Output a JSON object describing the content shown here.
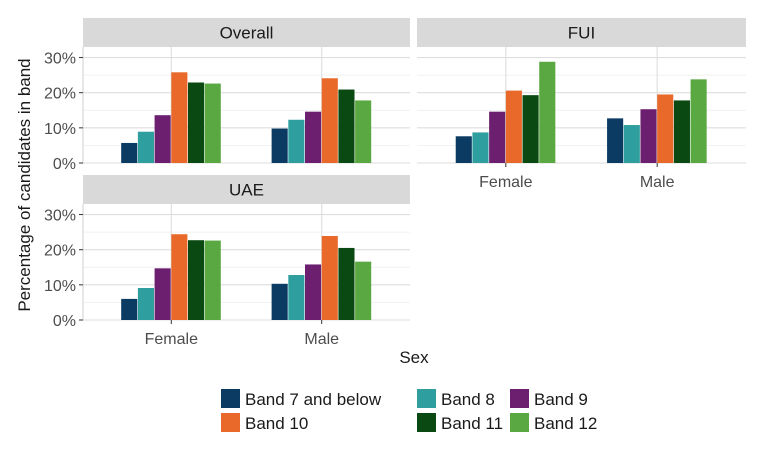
{
  "chart_data": {
    "type": "bar",
    "xlabel": "Sex",
    "ylabel": "Percentage of candidates in band",
    "ylim": [
      0,
      33
    ],
    "y_ticks": [
      "0%",
      "10%",
      "20%",
      "30%"
    ],
    "y_tick_values": [
      0,
      10,
      20,
      30
    ],
    "categories": [
      "Female",
      "Male"
    ],
    "legend": [
      "Band 7 and below",
      "Band 8",
      "Band 9",
      "Band 10",
      "Band 11",
      "Band 12"
    ],
    "legend_position": "bottom",
    "grid": true,
    "colors": [
      "#0b3a63",
      "#2f9e9e",
      "#6b1f6e",
      "#e8692a",
      "#0a4a12",
      "#5aa842"
    ],
    "panels": [
      {
        "title": "Overall",
        "series": [
          {
            "name": "Band 7 and below",
            "values": [
              5.7,
              9.8
            ]
          },
          {
            "name": "Band 8",
            "values": [
              8.9,
              12.3
            ]
          },
          {
            "name": "Band 9",
            "values": [
              13.6,
              14.6
            ]
          },
          {
            "name": "Band 10",
            "values": [
              25.8,
              24.1
            ]
          },
          {
            "name": "Band 11",
            "values": [
              22.9,
              20.9
            ]
          },
          {
            "name": "Band 12",
            "values": [
              22.6,
              17.8
            ]
          }
        ]
      },
      {
        "title": "FUI",
        "series": [
          {
            "name": "Band 7 and below",
            "values": [
              7.6,
              12.7
            ]
          },
          {
            "name": "Band 8",
            "values": [
              8.7,
              10.8
            ]
          },
          {
            "name": "Band 9",
            "values": [
              14.6,
              15.3
            ]
          },
          {
            "name": "Band 10",
            "values": [
              20.6,
              19.5
            ]
          },
          {
            "name": "Band 11",
            "values": [
              19.3,
              17.8
            ]
          },
          {
            "name": "Band 12",
            "values": [
              28.8,
              23.8
            ]
          }
        ]
      },
      {
        "title": "UAE",
        "series": [
          {
            "name": "Band 7 and below",
            "values": [
              6.0,
              10.3
            ]
          },
          {
            "name": "Band 8",
            "values": [
              9.1,
              12.8
            ]
          },
          {
            "name": "Band 9",
            "values": [
              14.7,
              15.8
            ]
          },
          {
            "name": "Band 10",
            "values": [
              24.4,
              23.9
            ]
          },
          {
            "name": "Band 11",
            "values": [
              22.7,
              20.5
            ]
          },
          {
            "name": "Band 12",
            "values": [
              22.6,
              16.6
            ]
          }
        ]
      }
    ]
  }
}
